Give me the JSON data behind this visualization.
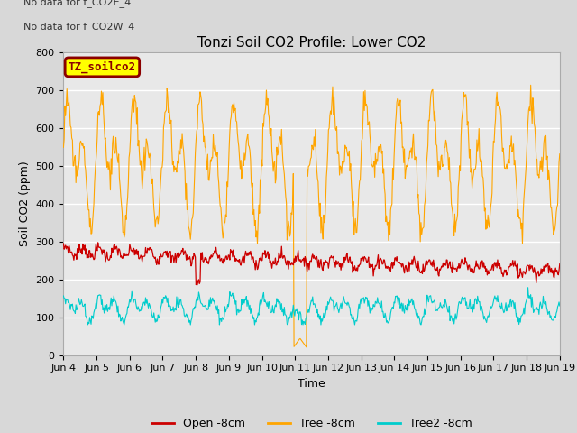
{
  "title": "Tonzi Soil CO2 Profile: Lower CO2",
  "xlabel": "Time",
  "ylabel": "Soil CO2 (ppm)",
  "ylim": [
    0,
    800
  ],
  "yticks": [
    0,
    100,
    200,
    300,
    400,
    500,
    600,
    700,
    800
  ],
  "text_lines": [
    "No data for f_CO2E_4",
    "No data for f_CO2W_4"
  ],
  "legend_box_label": "TZ_soilco2",
  "legend_box_color": "#ffff00",
  "legend_box_border": "#8b0000",
  "series": {
    "open": {
      "label": "Open -8cm",
      "color": "#cc0000"
    },
    "tree": {
      "label": "Tree -8cm",
      "color": "#ffa500"
    },
    "tree2": {
      "label": "Tree2 -8cm",
      "color": "#00cccc"
    }
  },
  "xtick_labels": [
    "Jun 4",
    "Jun 5",
    "Jun 6",
    "Jun 7",
    "Jun 8",
    "Jun 9",
    "Jun 10",
    "Jun 11",
    "Jun 12",
    "Jun 13",
    "Jun 14",
    "Jun 15",
    "Jun 16",
    "Jun 17",
    "Jun 18",
    "Jun 19"
  ],
  "background_color": "#d8d8d8",
  "plot_bg_color": "#e8e8e8",
  "grid_color": "#ffffff",
  "title_fontsize": 11,
  "axis_fontsize": 9,
  "tick_fontsize": 8
}
